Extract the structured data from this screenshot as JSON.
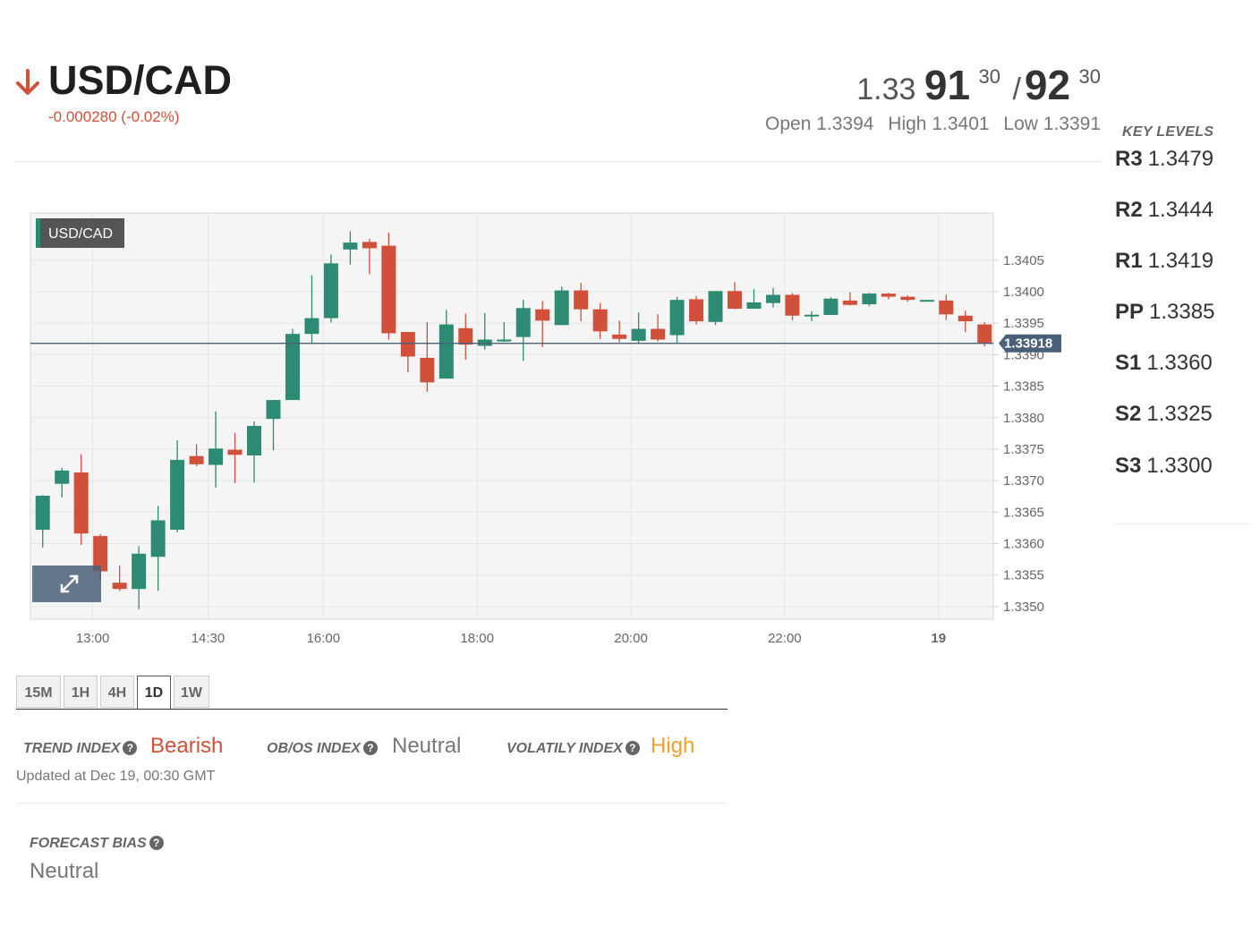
{
  "header": {
    "pair": "USD/CAD",
    "change": "-0.000280 (-0.02%)",
    "direction_icon": "arrow-down-icon",
    "bid": {
      "prefix": "1.33",
      "big": "91",
      "sup": "30"
    },
    "ask": {
      "big": "92",
      "sup": "30"
    },
    "separator": "/",
    "open": "Open 1.3394",
    "high": "High 1.3401",
    "low": "Low 1.3391"
  },
  "key_levels": {
    "title": "KEY LEVELS",
    "items": [
      {
        "label": "R3",
        "value": "1.3479"
      },
      {
        "label": "R2",
        "value": "1.3444"
      },
      {
        "label": "R1",
        "value": "1.3419"
      },
      {
        "label": "PP",
        "value": "1.3385"
      },
      {
        "label": "S1",
        "value": "1.3360"
      },
      {
        "label": "S2",
        "value": "1.3325"
      },
      {
        "label": "S3",
        "value": "1.3300"
      }
    ]
  },
  "chart_data": {
    "type": "candlestick",
    "symbol_label": "USD/CAD",
    "current_price_label": "1.33918",
    "current_price": 1.33918,
    "ylim": [
      1.3348,
      1.34125
    ],
    "y_ticks": [
      "1.3350",
      "1.3355",
      "1.3360",
      "1.3365",
      "1.3370",
      "1.3375",
      "1.3380",
      "1.3385",
      "1.3390",
      "1.3395",
      "1.3400",
      "1.3405"
    ],
    "x_ticks": [
      {
        "label": "13:00",
        "index": 3.1
      },
      {
        "label": "14:30",
        "index": 9.1
      },
      {
        "label": "16:00",
        "index": 15.1
      },
      {
        "label": "18:00",
        "index": 23.1
      },
      {
        "label": "20:00",
        "index": 31.1
      },
      {
        "label": "22:00",
        "index": 39.1
      },
      {
        "label": "19",
        "index": 47.1,
        "bold": true
      }
    ],
    "candles": [
      {
        "o": 1.33622,
        "h": 1.33677,
        "l": 1.33594,
        "c": 1.33676
      },
      {
        "o": 1.33695,
        "h": 1.3372,
        "l": 1.33673,
        "c": 1.33716
      },
      {
        "o": 1.33713,
        "h": 1.33742,
        "l": 1.33598,
        "c": 1.33616
      },
      {
        "o": 1.33612,
        "h": 1.33615,
        "l": 1.33542,
        "c": 1.33556
      },
      {
        "o": 1.33538,
        "h": 1.33565,
        "l": 1.33525,
        "c": 1.33528
      },
      {
        "o": 1.33528,
        "h": 1.33596,
        "l": 1.33496,
        "c": 1.33584
      },
      {
        "o": 1.33579,
        "h": 1.3366,
        "l": 1.33525,
        "c": 1.33637
      },
      {
        "o": 1.33622,
        "h": 1.33764,
        "l": 1.33618,
        "c": 1.33733
      },
      {
        "o": 1.33739,
        "h": 1.33758,
        "l": 1.33723,
        "c": 1.33726
      },
      {
        "o": 1.33725,
        "h": 1.3381,
        "l": 1.33689,
        "c": 1.33751
      },
      {
        "o": 1.33749,
        "h": 1.33776,
        "l": 1.33696,
        "c": 1.33741
      },
      {
        "o": 1.3374,
        "h": 1.33794,
        "l": 1.33697,
        "c": 1.33787
      },
      {
        "o": 1.33798,
        "h": 1.33827,
        "l": 1.33748,
        "c": 1.33828
      },
      {
        "o": 1.33828,
        "h": 1.33941,
        "l": 1.33828,
        "c": 1.33933
      },
      {
        "o": 1.33933,
        "h": 1.34026,
        "l": 1.33917,
        "c": 1.33958
      },
      {
        "o": 1.33958,
        "h": 1.34059,
        "l": 1.33951,
        "c": 1.34045
      },
      {
        "o": 1.34067,
        "h": 1.34096,
        "l": 1.34043,
        "c": 1.34078
      },
      {
        "o": 1.34079,
        "h": 1.34084,
        "l": 1.34028,
        "c": 1.34069
      },
      {
        "o": 1.34073,
        "h": 1.34094,
        "l": 1.33924,
        "c": 1.33934
      },
      {
        "o": 1.33936,
        "h": 1.33935,
        "l": 1.33872,
        "c": 1.33897
      },
      {
        "o": 1.33895,
        "h": 1.33952,
        "l": 1.33841,
        "c": 1.33856
      },
      {
        "o": 1.33862,
        "h": 1.33971,
        "l": 1.33862,
        "c": 1.33948
      },
      {
        "o": 1.33942,
        "h": 1.33965,
        "l": 1.33892,
        "c": 1.33916
      },
      {
        "o": 1.33914,
        "h": 1.33966,
        "l": 1.33908,
        "c": 1.33924
      },
      {
        "o": 1.33921,
        "h": 1.33952,
        "l": 1.3392,
        "c": 1.33924
      },
      {
        "o": 1.33928,
        "h": 1.33987,
        "l": 1.3389,
        "c": 1.33974
      },
      {
        "o": 1.33972,
        "h": 1.33985,
        "l": 1.33912,
        "c": 1.33954
      },
      {
        "o": 1.33947,
        "h": 1.34008,
        "l": 1.33948,
        "c": 1.34002
      },
      {
        "o": 1.34002,
        "h": 1.34014,
        "l": 1.33953,
        "c": 1.33972
      },
      {
        "o": 1.33972,
        "h": 1.33982,
        "l": 1.33925,
        "c": 1.33937
      },
      {
        "o": 1.33932,
        "h": 1.33954,
        "l": 1.3392,
        "c": 1.33925
      },
      {
        "o": 1.33922,
        "h": 1.33967,
        "l": 1.33918,
        "c": 1.33941
      },
      {
        "o": 1.33941,
        "h": 1.33964,
        "l": 1.33921,
        "c": 1.33924
      },
      {
        "o": 1.33931,
        "h": 1.33992,
        "l": 1.33918,
        "c": 1.33987
      },
      {
        "o": 1.33988,
        "h": 1.33993,
        "l": 1.33948,
        "c": 1.33953
      },
      {
        "o": 1.33952,
        "h": 1.34,
        "l": 1.33947,
        "c": 1.34001
      },
      {
        "o": 1.34001,
        "h": 1.34015,
        "l": 1.33972,
        "c": 1.33973
      },
      {
        "o": 1.33973,
        "h": 1.34004,
        "l": 1.33976,
        "c": 1.33983
      },
      {
        "o": 1.33982,
        "h": 1.34006,
        "l": 1.33975,
        "c": 1.33995
      },
      {
        "o": 1.33995,
        "h": 1.33998,
        "l": 1.33955,
        "c": 1.33962
      },
      {
        "o": 1.33962,
        "h": 1.33969,
        "l": 1.33953,
        "c": 1.33962
      },
      {
        "o": 1.33963,
        "h": 1.33991,
        "l": 1.33964,
        "c": 1.33989
      },
      {
        "o": 1.33986,
        "h": 1.33999,
        "l": 1.33978,
        "c": 1.33979
      },
      {
        "o": 1.3398,
        "h": 1.33998,
        "l": 1.33977,
        "c": 1.33997
      },
      {
        "o": 1.33997,
        "h": 1.33998,
        "l": 1.33988,
        "c": 1.33992
      },
      {
        "o": 1.33992,
        "h": 1.33994,
        "l": 1.33984,
        "c": 1.33987
      },
      {
        "o": 1.33985,
        "h": 1.33987,
        "l": 1.33986,
        "c": 1.33986
      },
      {
        "o": 1.33986,
        "h": 1.33995,
        "l": 1.33955,
        "c": 1.33964
      },
      {
        "o": 1.33962,
        "h": 1.3397,
        "l": 1.33936,
        "c": 1.33953
      },
      {
        "o": 1.33948,
        "h": 1.33952,
        "l": 1.33913,
        "c": 1.33918
      }
    ],
    "colors": {
      "up": "#2e8b73",
      "down": "#d0503a",
      "price_line": "#4a6078",
      "grid": "#e6e6e6"
    }
  },
  "timeframes": {
    "tabs": [
      "15M",
      "1H",
      "4H",
      "1D",
      "1W"
    ],
    "active": "1D"
  },
  "indices": {
    "trend": {
      "label": "TREND INDEX",
      "value": "Bearish",
      "color": "#d0503a"
    },
    "obos": {
      "label": "OB/OS INDEX",
      "value": "Neutral",
      "color": "#777777"
    },
    "volatility": {
      "label": "VOLATILY INDEX",
      "value": "High",
      "color": "#f0a030"
    },
    "updated": "Updated at Dec 19, 00:30 GMT",
    "help_icon": "question-circle-icon"
  },
  "forecast": {
    "label": "FORECAST BIAS",
    "value": "Neutral"
  },
  "colors": {
    "accent_red": "#d0503a",
    "text_dark": "#333333"
  }
}
